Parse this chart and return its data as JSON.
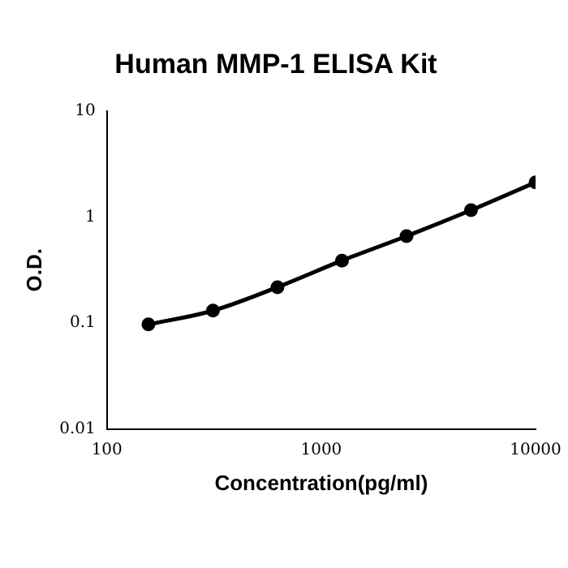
{
  "chart_data": {
    "type": "line",
    "title": "Human MMP-1 ELISA Kit",
    "xlabel": "Concentration(pg/ml)",
    "ylabel": "O.D.",
    "x": [
      156.25,
      312.5,
      625,
      1250,
      2500,
      5000,
      10000
    ],
    "series": [
      {
        "color": "#000000",
        "values": [
          0.097,
          0.131,
          0.218,
          0.388,
          0.66,
          1.16,
          2.12
        ]
      }
    ],
    "log": "xy",
    "xlim": [
      100,
      10000
    ],
    "ylim": [
      0.01,
      10
    ],
    "xticks": [
      100,
      1000,
      10000
    ],
    "yticks": [
      0.01,
      0.1,
      1,
      10
    ],
    "grid": false,
    "legend": false,
    "marker": "circle",
    "line_style": "solid"
  }
}
